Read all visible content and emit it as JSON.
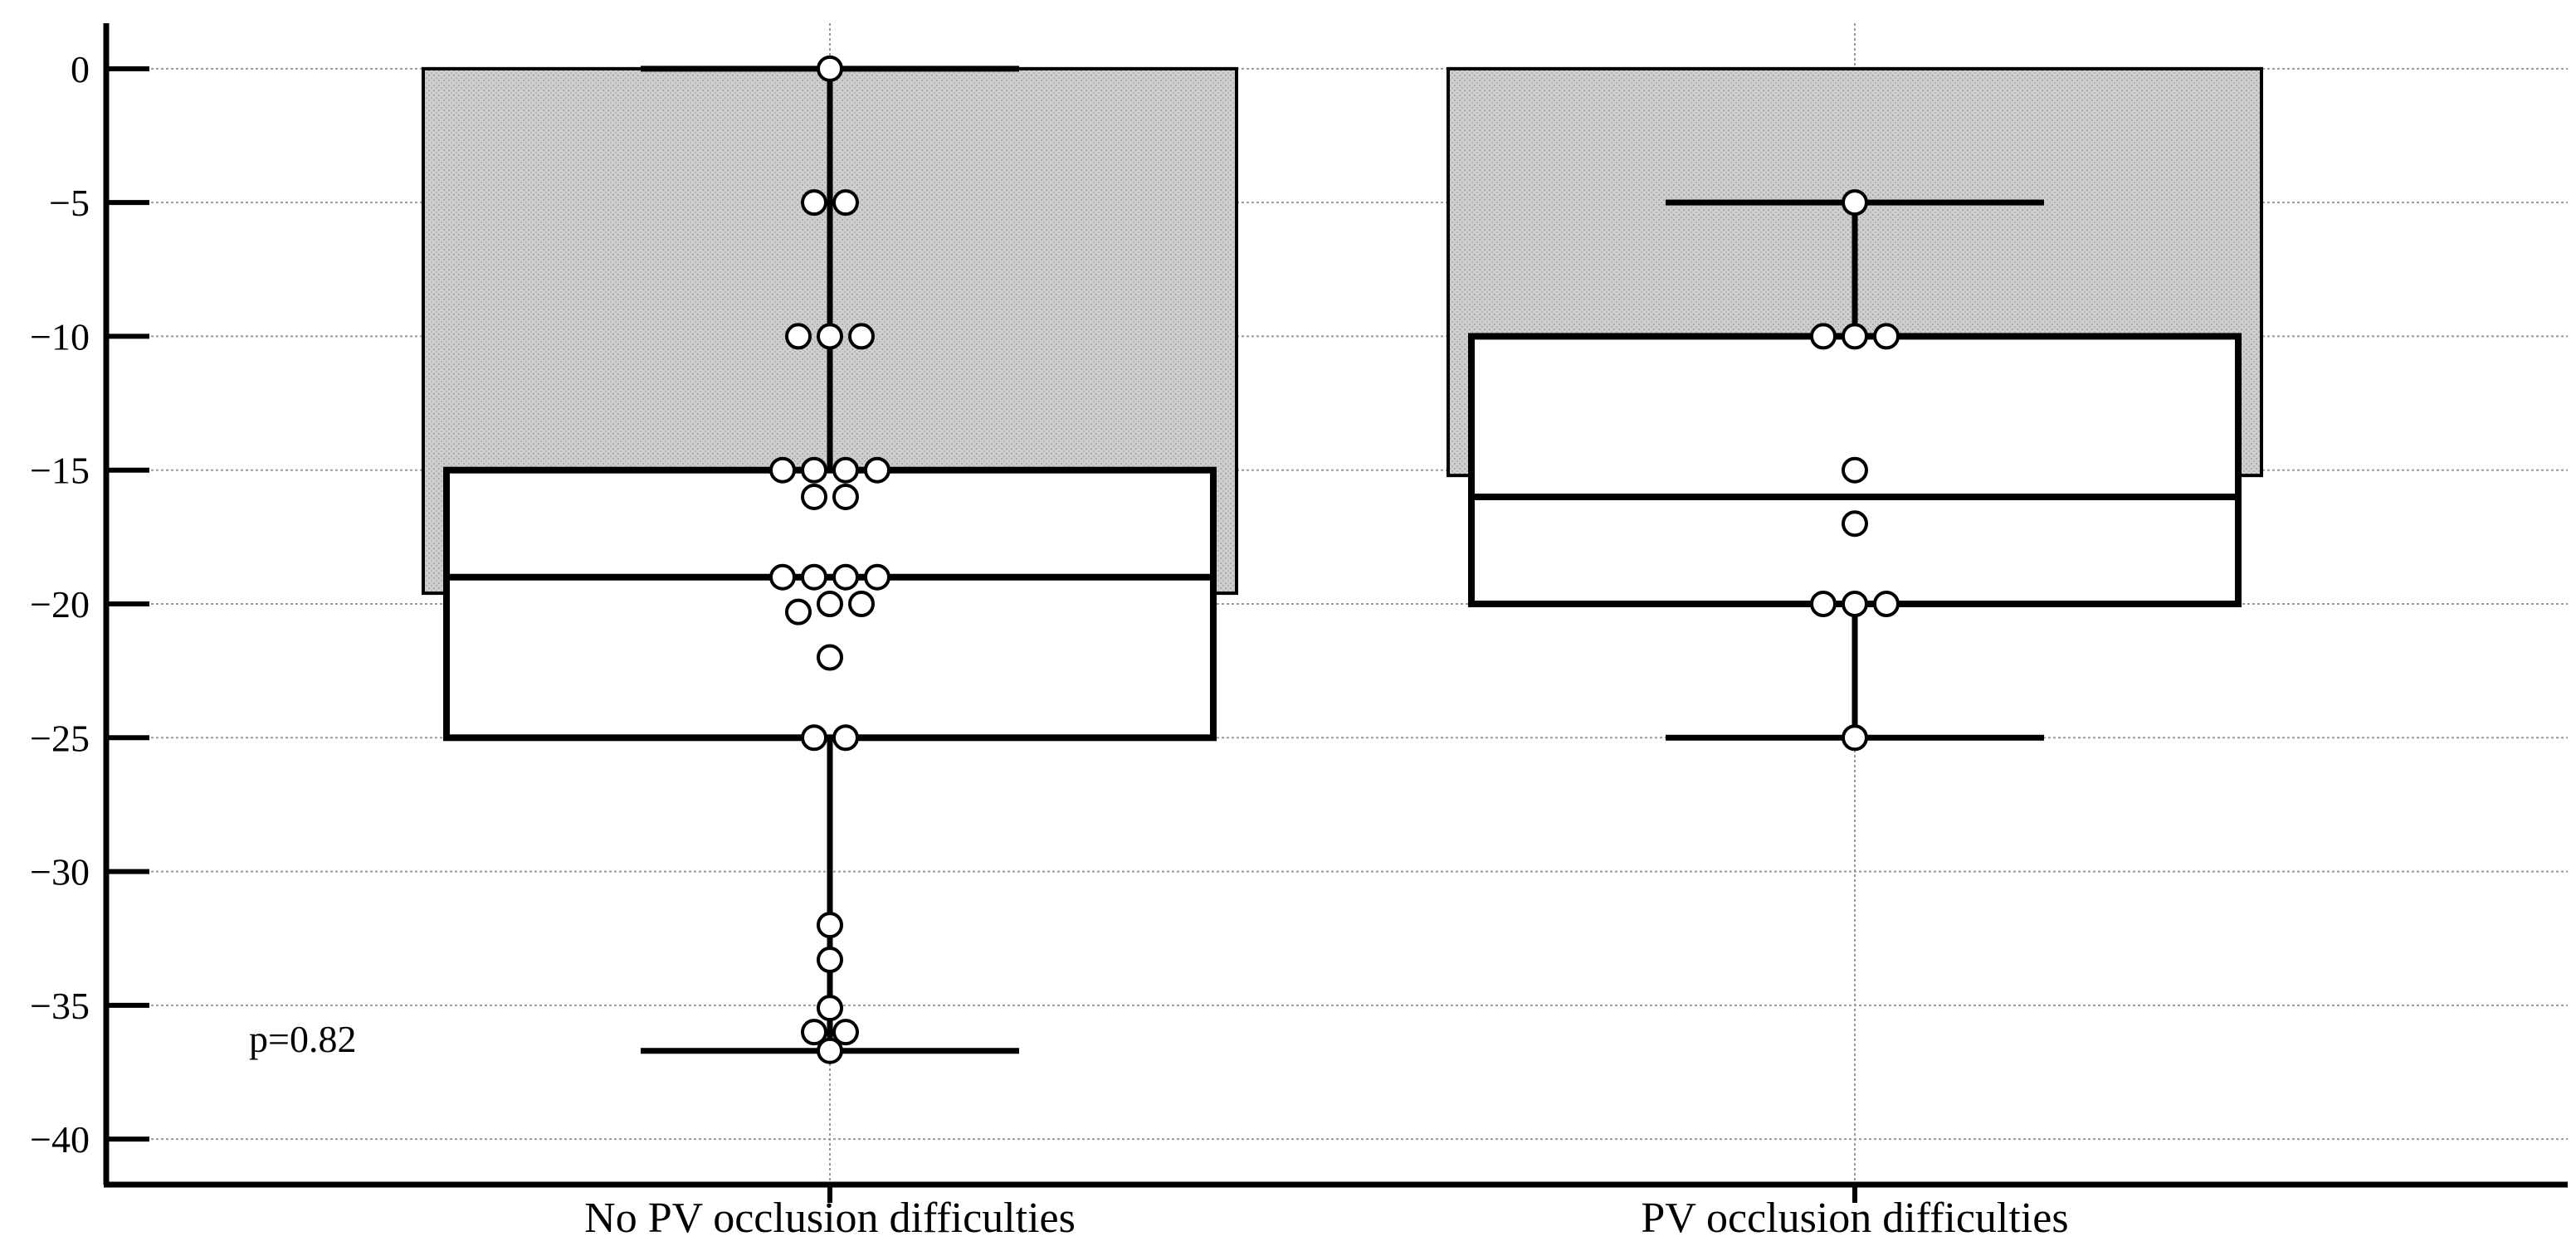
{
  "chart_data": {
    "type": "bar",
    "categories": [
      "No PV occlusion difficulties",
      "PV occlusion difficulties"
    ],
    "means": [
      -19.6,
      -15.2
    ],
    "boxes": [
      {
        "q1": -25,
        "median": -19,
        "q3": -15,
        "whisker_low": -36.7,
        "whisker_high": 0
      },
      {
        "q1": -20,
        "median": -16,
        "q3": -10,
        "whisker_low": -25,
        "whisker_high": -5
      }
    ],
    "points": [
      [
        {
          "y": 0,
          "dx": 0
        },
        {
          "y": -5,
          "dx": -0.5
        },
        {
          "y": -5,
          "dx": 0.5
        },
        {
          "y": -10,
          "dx": -1
        },
        {
          "y": -10,
          "dx": 0
        },
        {
          "y": -10,
          "dx": 1
        },
        {
          "y": -15,
          "dx": -1.5
        },
        {
          "y": -15,
          "dx": -0.5
        },
        {
          "y": -15,
          "dx": 0.5
        },
        {
          "y": -15,
          "dx": 1.5
        },
        {
          "y": -16,
          "dx": -0.5
        },
        {
          "y": -16,
          "dx": 0.5
        },
        {
          "y": -19,
          "dx": -1.5
        },
        {
          "y": -19,
          "dx": -0.5
        },
        {
          "y": -19,
          "dx": 0.5
        },
        {
          "y": -19,
          "dx": 1.5
        },
        {
          "y": -20,
          "dx": 0
        },
        {
          "y": -20,
          "dx": 1
        },
        {
          "y": -20.3,
          "dx": -1
        },
        {
          "y": -22,
          "dx": 0
        },
        {
          "y": -25,
          "dx": -0.5
        },
        {
          "y": -25,
          "dx": 0.5
        },
        {
          "y": -32,
          "dx": 0
        },
        {
          "y": -33.3,
          "dx": 0
        },
        {
          "y": -35.1,
          "dx": 0
        },
        {
          "y": -36,
          "dx": -0.5
        },
        {
          "y": -36,
          "dx": 0.5
        },
        {
          "y": -36.7,
          "dx": 0
        }
      ],
      [
        {
          "y": -5,
          "dx": 0
        },
        {
          "y": -10,
          "dx": -1
        },
        {
          "y": -10,
          "dx": 0
        },
        {
          "y": -10,
          "dx": 1
        },
        {
          "y": -15,
          "dx": 0
        },
        {
          "y": -17,
          "dx": 0
        },
        {
          "y": -20,
          "dx": -1
        },
        {
          "y": -20,
          "dx": 0
        },
        {
          "y": -20,
          "dx": 1
        },
        {
          "y": -25,
          "dx": 0
        }
      ]
    ],
    "y_ticks": [
      0,
      -5,
      -10,
      -15,
      -20,
      -25,
      -30,
      -35,
      -40
    ],
    "ylim": [
      -41.7,
      1.7
    ],
    "annotation": "p=0.82",
    "title": "",
    "xlabel": "",
    "ylabel": "",
    "colors": {
      "bar_fill": "#c8c8c8",
      "box_fill": "#ffffff",
      "stroke": "#000000",
      "grid": "#999999"
    }
  }
}
